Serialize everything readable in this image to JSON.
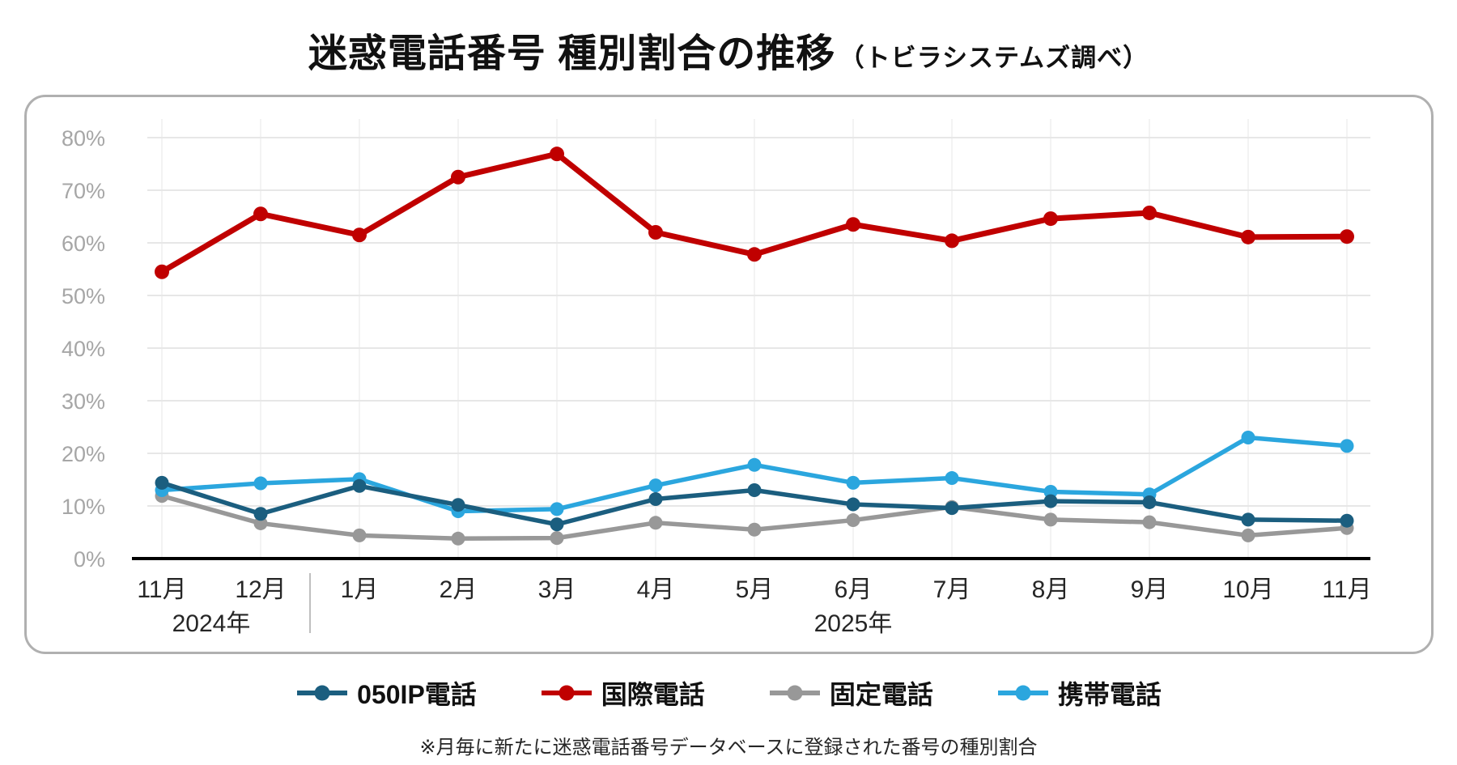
{
  "title": {
    "main": "迷惑電話番号 種別割合の推移",
    "sub": "（トビラシステムズ調べ）"
  },
  "footnote": "※月毎に新たに迷惑電話番号データベースに登録された番号の種別割合",
  "chart_data": {
    "type": "line",
    "title": "迷惑電話番号 種別割合の推移（トビラシステムズ調べ）",
    "xlabel": "",
    "ylabel": "",
    "ylim": [
      0,
      80
    ],
    "grid": true,
    "legend_position": "bottom",
    "y_ticks": [
      "0%",
      "10%",
      "20%",
      "30%",
      "40%",
      "50%",
      "60%",
      "70%",
      "80%"
    ],
    "x_labels": [
      "11月",
      "12月",
      "1月",
      "2月",
      "3月",
      "4月",
      "5月",
      "6月",
      "7月",
      "8月",
      "9月",
      "10月",
      "11月"
    ],
    "year_groups": [
      {
        "label": "2024年",
        "start": 0,
        "end": 1
      },
      {
        "label": "2025年",
        "start": 2,
        "end": 12
      }
    ],
    "series": [
      {
        "name": "050IP電話",
        "color": "#1b5e7f",
        "values": [
          14.4,
          8.5,
          13.8,
          10.2,
          6.5,
          11.3,
          13.0,
          10.3,
          9.6,
          10.9,
          10.7,
          7.4,
          7.2
        ]
      },
      {
        "name": "国際電話",
        "color": "#c00000",
        "values": [
          54.5,
          65.5,
          61.5,
          72.5,
          76.9,
          62.0,
          57.8,
          63.5,
          60.4,
          64.6,
          65.7,
          61.1,
          61.2
        ]
      },
      {
        "name": "固定電話",
        "color": "#989898",
        "values": [
          11.9,
          6.7,
          4.4,
          3.8,
          3.9,
          6.8,
          5.5,
          7.3,
          9.8,
          7.4,
          6.9,
          4.4,
          5.8
        ]
      },
      {
        "name": "携帯電話",
        "color": "#2ba6de",
        "values": [
          13.0,
          14.3,
          15.1,
          9.0,
          9.4,
          13.9,
          17.8,
          14.4,
          15.3,
          12.7,
          12.2,
          23.0,
          21.4
        ]
      }
    ],
    "draw_order": [
      2,
      3,
      0,
      1
    ]
  }
}
